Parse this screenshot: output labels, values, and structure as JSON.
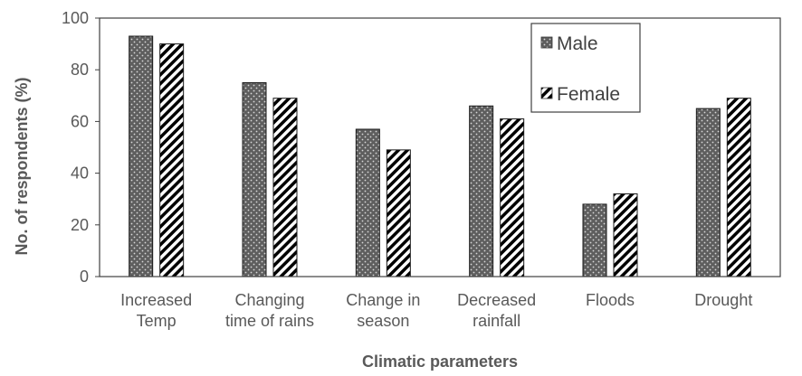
{
  "chart_data": {
    "type": "bar",
    "title": "",
    "xlabel": "Climatic parameters",
    "ylabel": "No. of respondents (%)",
    "ylim": [
      0,
      100
    ],
    "yticks": [
      0,
      20,
      40,
      60,
      80,
      100
    ],
    "grid": false,
    "legend_position": "top-right",
    "categories": [
      [
        "Increased",
        "Temp"
      ],
      [
        "Changing",
        "time of rains"
      ],
      [
        "Change in",
        "season"
      ],
      [
        "Decreased",
        "rainfall"
      ],
      [
        "Floods"
      ],
      [
        "Drought"
      ]
    ],
    "series": [
      {
        "name": "Male",
        "values": [
          93,
          75,
          57,
          66,
          28,
          65
        ],
        "pattern": "dots",
        "color": "#606060"
      },
      {
        "name": "Female",
        "values": [
          90,
          69,
          49,
          61,
          32,
          69
        ],
        "pattern": "stripes",
        "color": "#000000"
      }
    ]
  }
}
